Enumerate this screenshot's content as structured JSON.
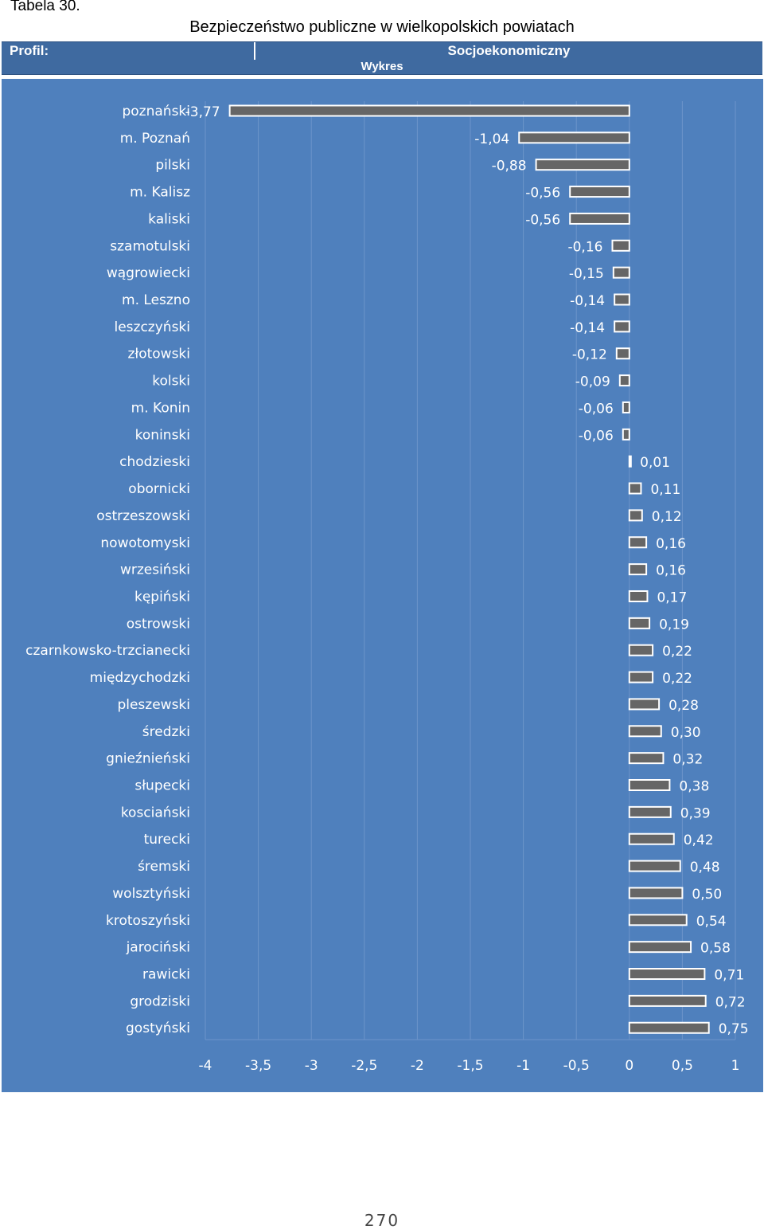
{
  "header": {
    "table_label": "Tabela 30.",
    "title": "Bezpieczeństwo publiczne w wielkopolskich powiatach",
    "profil_label": "Profil:",
    "profil_value": "Socjoekonomiczny",
    "section_label": "Wykres"
  },
  "footer": {
    "page_number": "270"
  },
  "colors": {
    "panel": "#4f80bd",
    "header": "#3f6aa0",
    "bar_fill": "#666666",
    "bar_outline": "#ffffff",
    "gridline": "#6c95ca",
    "text": "#ffffff"
  },
  "chart_data": {
    "type": "bar",
    "orientation": "horizontal",
    "title": "",
    "xlabel": "",
    "ylabel": "",
    "xlim": [
      -4,
      1
    ],
    "xticks": [
      -4,
      -3.5,
      -3,
      -2.5,
      -2,
      -1.5,
      -1,
      -0.5,
      0,
      0.5,
      1
    ],
    "xtick_labels": [
      "-4",
      "-3,5",
      "-3",
      "-2,5",
      "-2",
      "-1,5",
      "-1",
      "-0,5",
      "0",
      "0,5",
      "1"
    ],
    "grid": true,
    "legend": "none",
    "categories": [
      "poznański",
      "m. Poznań",
      "pilski",
      "m. Kalisz",
      "kaliski",
      "szamotulski",
      "wągrowiecki",
      "m. Leszno",
      "leszczyński",
      "złotowski",
      "kolski",
      "m. Konin",
      "koninski",
      "chodzieski",
      "obornicki",
      "ostrzeszowski",
      "nowotomyski",
      "wrzesiński",
      "kępiński",
      "ostrowski",
      "czarnkowsko-trzcianecki",
      "międzychodzki",
      "pleszewski",
      "średzki",
      "gnieźnieński",
      "słupecki",
      "kosciański",
      "turecki",
      "śremski",
      "wolsztyński",
      "krotoszyński",
      "jarociński",
      "rawicki",
      "grodziski",
      "gostyński"
    ],
    "values": [
      -3.77,
      -1.04,
      -0.88,
      -0.56,
      -0.56,
      -0.16,
      -0.15,
      -0.14,
      -0.14,
      -0.12,
      -0.09,
      -0.06,
      -0.06,
      0.01,
      0.11,
      0.12,
      0.16,
      0.16,
      0.17,
      0.19,
      0.22,
      0.22,
      0.28,
      0.3,
      0.32,
      0.38,
      0.39,
      0.42,
      0.48,
      0.5,
      0.54,
      0.58,
      0.71,
      0.72,
      0.75
    ],
    "value_labels": [
      "-3,77",
      "-1,04",
      "-0,88",
      "-0,56",
      "-0,56",
      "-0,16",
      "-0,15",
      "-0,14",
      "-0,14",
      "-0,12",
      "-0,09",
      "-0,06",
      "-0,06",
      "0,01",
      "0,11",
      "0,12",
      "0,16",
      "0,16",
      "0,17",
      "0,19",
      "0,22",
      "0,22",
      "0,28",
      "0,30",
      "0,32",
      "0,38",
      "0,39",
      "0,42",
      "0,48",
      "0,50",
      "0,54",
      "0,58",
      "0,71",
      "0,72",
      "0,75"
    ]
  }
}
